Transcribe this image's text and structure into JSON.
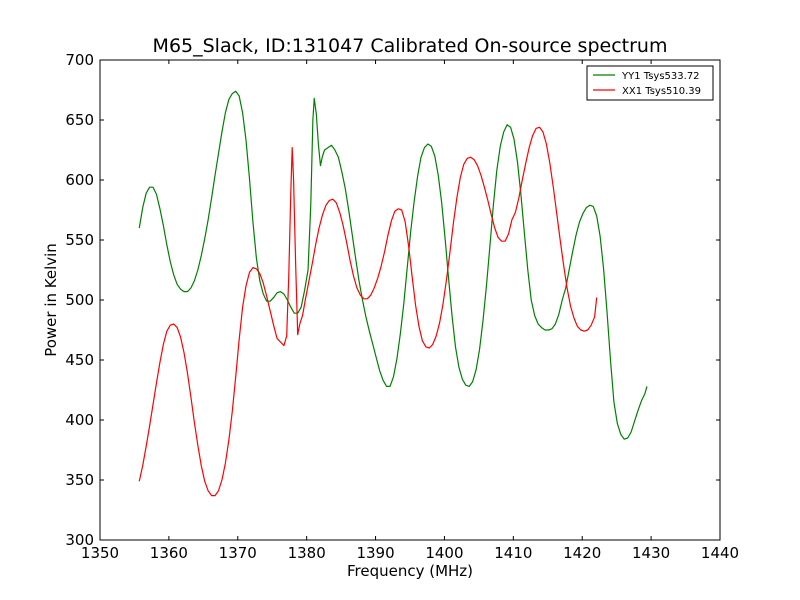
{
  "chart_data": {
    "type": "line",
    "title": "M65_Slack, ID:131047 Calibrated On-source spectrum",
    "xlabel": "Frequency (MHz)",
    "ylabel": "Power in Kelvin",
    "xlim": [
      1350,
      1440
    ],
    "ylim": [
      300,
      700
    ],
    "xticks": [
      1350,
      1360,
      1370,
      1380,
      1390,
      1400,
      1410,
      1420,
      1430,
      1440
    ],
    "yticks": [
      300,
      350,
      400,
      450,
      500,
      550,
      600,
      650,
      700
    ],
    "grid": false,
    "legend_position": "top-right",
    "series": [
      {
        "name": "YY1 Tsys533.72",
        "color": "#008000",
        "points": [
          [
            1355.7,
            560
          ],
          [
            1356.2,
            577
          ],
          [
            1356.7,
            589
          ],
          [
            1357.2,
            594
          ],
          [
            1357.7,
            594
          ],
          [
            1358.2,
            588
          ],
          [
            1358.7,
            576
          ],
          [
            1359.2,
            562
          ],
          [
            1359.7,
            546
          ],
          [
            1360.2,
            532
          ],
          [
            1360.7,
            521
          ],
          [
            1361.2,
            513
          ],
          [
            1361.7,
            509
          ],
          [
            1362.2,
            507
          ],
          [
            1362.7,
            507
          ],
          [
            1363.2,
            510
          ],
          [
            1363.7,
            516
          ],
          [
            1364.2,
            525
          ],
          [
            1364.7,
            537
          ],
          [
            1365.2,
            551
          ],
          [
            1365.7,
            567
          ],
          [
            1366.2,
            585
          ],
          [
            1366.7,
            604
          ],
          [
            1367.2,
            622
          ],
          [
            1367.7,
            640
          ],
          [
            1368.2,
            656
          ],
          [
            1368.7,
            667
          ],
          [
            1369.2,
            672
          ],
          [
            1369.7,
            674
          ],
          [
            1370.2,
            670
          ],
          [
            1370.7,
            656
          ],
          [
            1371.2,
            633
          ],
          [
            1371.7,
            601
          ],
          [
            1372.2,
            565
          ],
          [
            1372.7,
            535
          ],
          [
            1373.2,
            516
          ],
          [
            1373.7,
            505
          ],
          [
            1374.2,
            499
          ],
          [
            1374.7,
            499
          ],
          [
            1375.2,
            502
          ],
          [
            1375.7,
            506
          ],
          [
            1376.2,
            507
          ],
          [
            1376.7,
            505
          ],
          [
            1377.2,
            500
          ],
          [
            1377.7,
            494
          ],
          [
            1378.2,
            489
          ],
          [
            1378.7,
            489
          ],
          [
            1379.2,
            494
          ],
          [
            1379.7,
            508
          ],
          [
            1380.2,
            525
          ],
          [
            1380.6,
            580
          ],
          [
            1380.9,
            650
          ],
          [
            1381.1,
            668
          ],
          [
            1381.4,
            655
          ],
          [
            1381.7,
            630
          ],
          [
            1382.0,
            612
          ],
          [
            1382.3,
            620
          ],
          [
            1382.6,
            625
          ],
          [
            1383.1,
            627
          ],
          [
            1383.6,
            629
          ],
          [
            1384.1,
            625
          ],
          [
            1384.6,
            619
          ],
          [
            1385.1,
            607
          ],
          [
            1385.6,
            593
          ],
          [
            1386.1,
            575
          ],
          [
            1386.6,
            555
          ],
          [
            1387.1,
            535
          ],
          [
            1387.6,
            516
          ],
          [
            1388.1,
            500
          ],
          [
            1388.6,
            486
          ],
          [
            1389.1,
            474
          ],
          [
            1389.6,
            463
          ],
          [
            1390.1,
            452
          ],
          [
            1390.6,
            441
          ],
          [
            1391.1,
            433
          ],
          [
            1391.6,
            428
          ],
          [
            1392.1,
            428
          ],
          [
            1392.6,
            436
          ],
          [
            1393.1,
            451
          ],
          [
            1393.6,
            472
          ],
          [
            1394.1,
            497
          ],
          [
            1394.6,
            527
          ],
          [
            1395.1,
            557
          ],
          [
            1395.6,
            582
          ],
          [
            1396.1,
            603
          ],
          [
            1396.6,
            619
          ],
          [
            1397.1,
            627
          ],
          [
            1397.6,
            630
          ],
          [
            1398.1,
            628
          ],
          [
            1398.6,
            620
          ],
          [
            1399.1,
            604
          ],
          [
            1399.6,
            581
          ],
          [
            1400.1,
            551
          ],
          [
            1400.6,
            518
          ],
          [
            1401.1,
            487
          ],
          [
            1401.6,
            461
          ],
          [
            1402.1,
            444
          ],
          [
            1402.6,
            434
          ],
          [
            1403.1,
            429
          ],
          [
            1403.6,
            428
          ],
          [
            1404.1,
            432
          ],
          [
            1404.6,
            442
          ],
          [
            1405.1,
            459
          ],
          [
            1405.6,
            483
          ],
          [
            1406.1,
            512
          ],
          [
            1406.6,
            545
          ],
          [
            1407.1,
            579
          ],
          [
            1407.6,
            608
          ],
          [
            1408.1,
            628
          ],
          [
            1408.6,
            640
          ],
          [
            1409.1,
            646
          ],
          [
            1409.6,
            644
          ],
          [
            1410.1,
            634
          ],
          [
            1410.6,
            615
          ],
          [
            1411.1,
            588
          ],
          [
            1411.6,
            556
          ],
          [
            1412.1,
            525
          ],
          [
            1412.6,
            500
          ],
          [
            1413.1,
            487
          ],
          [
            1413.6,
            480
          ],
          [
            1414.1,
            477
          ],
          [
            1414.6,
            475
          ],
          [
            1415.1,
            475
          ],
          [
            1415.6,
            476
          ],
          [
            1416.1,
            480
          ],
          [
            1416.6,
            488
          ],
          [
            1417.1,
            500
          ],
          [
            1417.6,
            510
          ],
          [
            1418.1,
            525
          ],
          [
            1418.6,
            540
          ],
          [
            1419.1,
            554
          ],
          [
            1419.6,
            565
          ],
          [
            1420.1,
            572
          ],
          [
            1420.6,
            577
          ],
          [
            1421.1,
            579
          ],
          [
            1421.6,
            578
          ],
          [
            1422.1,
            570
          ],
          [
            1422.6,
            553
          ],
          [
            1423.1,
            526
          ],
          [
            1423.6,
            490
          ],
          [
            1424.1,
            450
          ],
          [
            1424.6,
            415
          ],
          [
            1425.1,
            397
          ],
          [
            1425.6,
            388
          ],
          [
            1426.1,
            384
          ],
          [
            1426.6,
            385
          ],
          [
            1427.1,
            390
          ],
          [
            1427.6,
            399
          ],
          [
            1428.1,
            408
          ],
          [
            1428.6,
            416
          ],
          [
            1429.1,
            422
          ],
          [
            1429.4,
            428
          ]
        ]
      },
      {
        "name": "XX1 Tsys510.39",
        "color": "#ff0000",
        "points": [
          [
            1355.7,
            349
          ],
          [
            1356.2,
            362
          ],
          [
            1356.7,
            378
          ],
          [
            1357.2,
            395
          ],
          [
            1357.7,
            413
          ],
          [
            1358.2,
            431
          ],
          [
            1358.7,
            448
          ],
          [
            1359.2,
            463
          ],
          [
            1359.7,
            474
          ],
          [
            1360.2,
            479
          ],
          [
            1360.7,
            480
          ],
          [
            1361.2,
            477
          ],
          [
            1361.7,
            469
          ],
          [
            1362.2,
            456
          ],
          [
            1362.7,
            439
          ],
          [
            1363.2,
            419
          ],
          [
            1363.7,
            398
          ],
          [
            1364.2,
            379
          ],
          [
            1364.7,
            362
          ],
          [
            1365.2,
            349
          ],
          [
            1365.7,
            341
          ],
          [
            1366.2,
            337
          ],
          [
            1366.7,
            337
          ],
          [
            1367.2,
            341
          ],
          [
            1367.7,
            350
          ],
          [
            1368.2,
            364
          ],
          [
            1368.7,
            383
          ],
          [
            1369.2,
            407
          ],
          [
            1369.7,
            436
          ],
          [
            1370.2,
            467
          ],
          [
            1370.7,
            494
          ],
          [
            1371.2,
            512
          ],
          [
            1371.7,
            523
          ],
          [
            1372.2,
            527
          ],
          [
            1372.7,
            526
          ],
          [
            1373.2,
            522
          ],
          [
            1373.7,
            514
          ],
          [
            1374.2,
            503
          ],
          [
            1374.7,
            491
          ],
          [
            1375.2,
            479
          ],
          [
            1375.7,
            468
          ],
          [
            1376.2,
            465
          ],
          [
            1376.7,
            462
          ],
          [
            1377.1,
            470
          ],
          [
            1377.4,
            520
          ],
          [
            1377.7,
            590
          ],
          [
            1377.9,
            627
          ],
          [
            1378.1,
            600
          ],
          [
            1378.4,
            530
          ],
          [
            1378.7,
            471
          ],
          [
            1379.0,
            480
          ],
          [
            1379.4,
            487
          ],
          [
            1379.8,
            500
          ],
          [
            1380.3,
            515
          ],
          [
            1380.8,
            530
          ],
          [
            1381.3,
            546
          ],
          [
            1381.8,
            560
          ],
          [
            1382.3,
            571
          ],
          [
            1382.8,
            579
          ],
          [
            1383.3,
            583
          ],
          [
            1383.8,
            584
          ],
          [
            1384.3,
            581
          ],
          [
            1384.8,
            573
          ],
          [
            1385.3,
            562
          ],
          [
            1385.8,
            548
          ],
          [
            1386.3,
            533
          ],
          [
            1386.8,
            520
          ],
          [
            1387.3,
            510
          ],
          [
            1387.8,
            504
          ],
          [
            1388.3,
            501
          ],
          [
            1388.8,
            501
          ],
          [
            1389.3,
            504
          ],
          [
            1389.8,
            510
          ],
          [
            1390.3,
            518
          ],
          [
            1390.8,
            528
          ],
          [
            1391.3,
            540
          ],
          [
            1391.8,
            554
          ],
          [
            1392.3,
            566
          ],
          [
            1392.8,
            574
          ],
          [
            1393.3,
            576
          ],
          [
            1393.8,
            575
          ],
          [
            1394.3,
            565
          ],
          [
            1394.8,
            545
          ],
          [
            1395.3,
            520
          ],
          [
            1395.8,
            496
          ],
          [
            1396.3,
            478
          ],
          [
            1396.8,
            466
          ],
          [
            1397.3,
            461
          ],
          [
            1397.8,
            460
          ],
          [
            1398.3,
            463
          ],
          [
            1398.8,
            470
          ],
          [
            1399.3,
            481
          ],
          [
            1399.8,
            497
          ],
          [
            1400.3,
            517
          ],
          [
            1400.8,
            540
          ],
          [
            1401.3,
            564
          ],
          [
            1401.8,
            585
          ],
          [
            1402.3,
            602
          ],
          [
            1402.8,
            613
          ],
          [
            1403.3,
            618
          ],
          [
            1403.8,
            619
          ],
          [
            1404.3,
            617
          ],
          [
            1404.8,
            612
          ],
          [
            1405.3,
            604
          ],
          [
            1405.8,
            594
          ],
          [
            1406.3,
            583
          ],
          [
            1406.8,
            571
          ],
          [
            1407.3,
            560
          ],
          [
            1407.8,
            552
          ],
          [
            1408.3,
            549
          ],
          [
            1408.8,
            549
          ],
          [
            1409.3,
            555
          ],
          [
            1409.8,
            567
          ],
          [
            1410.3,
            573
          ],
          [
            1410.8,
            585
          ],
          [
            1411.3,
            600
          ],
          [
            1411.8,
            614
          ],
          [
            1412.3,
            627
          ],
          [
            1412.8,
            637
          ],
          [
            1413.3,
            643
          ],
          [
            1413.8,
            644
          ],
          [
            1414.3,
            640
          ],
          [
            1414.8,
            630
          ],
          [
            1415.3,
            614
          ],
          [
            1415.8,
            594
          ],
          [
            1416.3,
            572
          ],
          [
            1416.8,
            550
          ],
          [
            1417.3,
            529
          ],
          [
            1417.8,
            510
          ],
          [
            1418.3,
            495
          ],
          [
            1418.8,
            485
          ],
          [
            1419.3,
            478
          ],
          [
            1419.8,
            475
          ],
          [
            1420.3,
            474
          ],
          [
            1420.8,
            475
          ],
          [
            1421.3,
            479
          ],
          [
            1421.8,
            486
          ],
          [
            1422.1,
            502
          ]
        ]
      }
    ]
  }
}
